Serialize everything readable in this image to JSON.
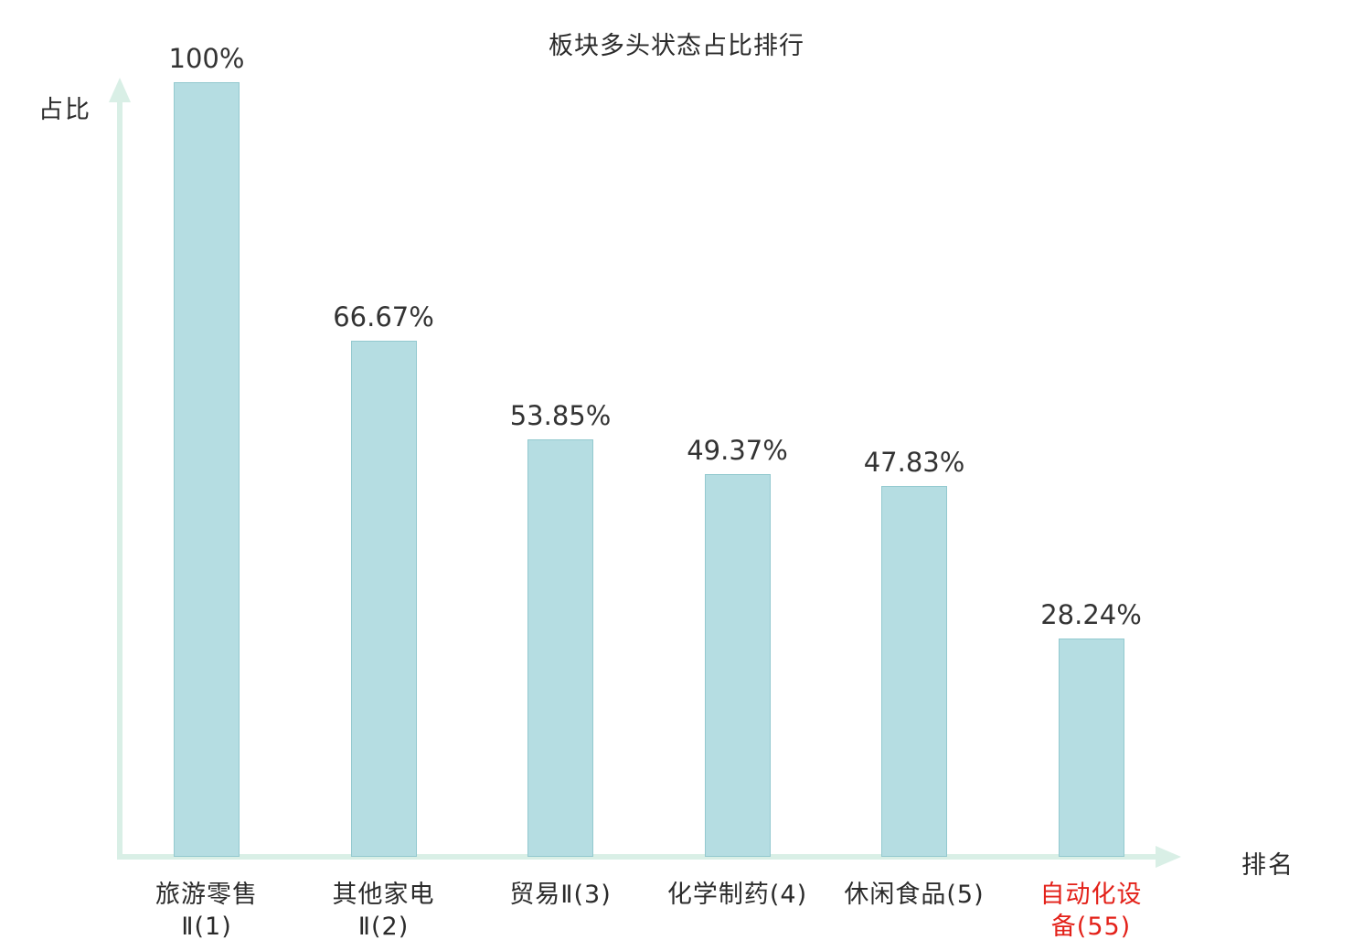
{
  "chart": {
    "title": "板块多头状态占比排行",
    "y_axis_label": "占比",
    "x_axis_label": "排名"
  },
  "chart_data": {
    "type": "bar",
    "title": "板块多头状态占比排行",
    "xlabel": "排名",
    "ylabel": "占比",
    "categories": [
      "旅游零售Ⅱ(1)",
      "其他家电Ⅱ(2)",
      "贸易Ⅱ(3)",
      "化学制药(4)",
      "休闲食品(5)",
      "自动化设备(55)"
    ],
    "category_lines": [
      [
        "旅游零售",
        "Ⅱ(1)"
      ],
      [
        "其他家电",
        "Ⅱ(2)"
      ],
      [
        "贸易Ⅱ(3)"
      ],
      [
        "化学制药(4)"
      ],
      [
        "休闲食品(5)"
      ],
      [
        "自动化设",
        "备(55)"
      ]
    ],
    "values": [
      100,
      66.67,
      53.85,
      49.37,
      47.83,
      28.24
    ],
    "value_labels": [
      "100%",
      "66.67%",
      "53.85%",
      "49.37%",
      "47.83%",
      "28.24%"
    ],
    "highlight_index": 5,
    "ylim": [
      0,
      100
    ],
    "grid": false,
    "legend": false,
    "colors": {
      "bar_fill": "#b5dde2",
      "bar_border": "#93c9cf",
      "axis": "#d9efe6",
      "value_label": "#333333",
      "category_label": "#2b2b2b",
      "highlight_label": "#e32119"
    }
  }
}
